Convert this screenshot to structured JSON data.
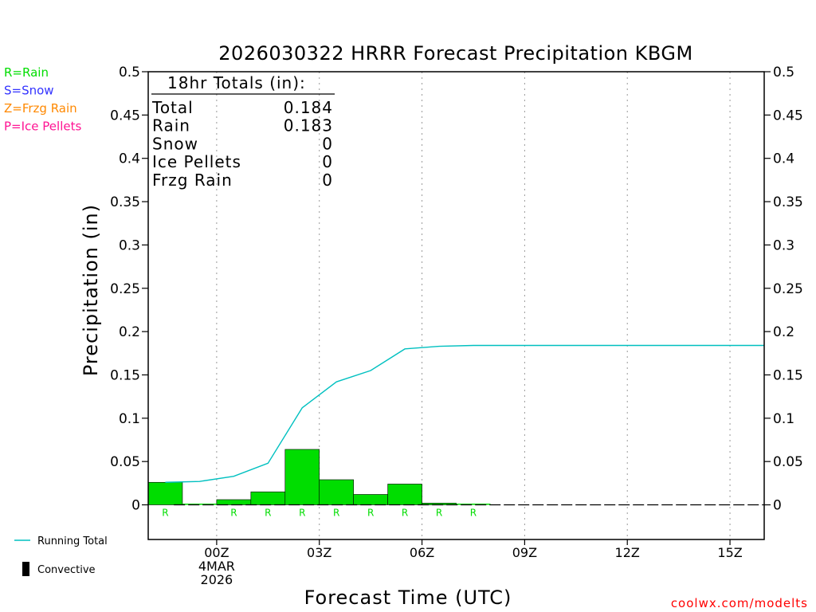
{
  "chart_data": {
    "type": "bar",
    "title": "2026030322 HRRR Forecast Precipitation KBGM",
    "xlabel": "Forecast Time (UTC)",
    "ylabel": "Precipitation (in)",
    "ylim": [
      -0.04,
      0.5
    ],
    "yticks": [
      "0",
      "0.05",
      "0.1",
      "0.15",
      "0.2",
      "0.25",
      "0.3",
      "0.35",
      "0.4",
      "0.45",
      "0.5"
    ],
    "xlim_hours": [
      -2,
      16
    ],
    "x_ticks": [
      {
        "hour": 0,
        "lines": [
          "00Z",
          "4MAR",
          "2026"
        ]
      },
      {
        "hour": 3,
        "lines": [
          "03Z"
        ]
      },
      {
        "hour": 6,
        "lines": [
          "06Z"
        ]
      },
      {
        "hour": 9,
        "lines": [
          "09Z"
        ]
      },
      {
        "hour": 12,
        "lines": [
          "12Z"
        ]
      },
      {
        "hour": 15,
        "lines": [
          "15Z"
        ]
      }
    ],
    "hourly": {
      "hours": [
        -1,
        0,
        1,
        2,
        3,
        4,
        5,
        6,
        7,
        8,
        9,
        10,
        11,
        12,
        13,
        14,
        15
      ],
      "values": [
        0.026,
        0.001,
        0.006,
        0.015,
        0.064,
        0.029,
        0.012,
        0.024,
        0.002,
        0.0005,
        0,
        0,
        0,
        0,
        0,
        0,
        0
      ],
      "ptype": [
        "R",
        "",
        "R",
        "R",
        "R",
        "R",
        "R",
        "R",
        "R",
        "R",
        "",
        "",
        "",
        "",
        "",
        "",
        ""
      ]
    },
    "running_total": {
      "name": "Running Total",
      "hours": [
        -1,
        0,
        1,
        2,
        3,
        4,
        5,
        6,
        7,
        8,
        9,
        10,
        11,
        12,
        13,
        14,
        15,
        16
      ],
      "values": [
        0.026,
        0.027,
        0.033,
        0.048,
        0.112,
        0.142,
        0.155,
        0.18,
        0.183,
        0.184,
        0.184,
        0.184,
        0.184,
        0.184,
        0.184,
        0.184,
        0.184,
        0.184
      ]
    },
    "totals_box": {
      "header": "18hr Totals (in):",
      "rows": [
        {
          "label": "Total",
          "value": "0.184"
        },
        {
          "label": "Rain",
          "value": "0.183"
        },
        {
          "label": "Snow",
          "value": "0"
        },
        {
          "label": "Ice Pellets",
          "value": "0"
        },
        {
          "label": "Frzg Rain",
          "value": "0"
        }
      ]
    },
    "ptype_legend": [
      {
        "label": "R=Rain",
        "color": "#00dd00"
      },
      {
        "label": "S=Snow",
        "color": "#3333ff"
      },
      {
        "label": "Z=Frzg Rain",
        "color": "#ff8800"
      },
      {
        "label": "P=Ice Pellets",
        "color": "#ff1493"
      }
    ],
    "series_legend": [
      {
        "label": "Running Total",
        "kind": "line",
        "color": "#00c0c0"
      },
      {
        "label": "Convective",
        "kind": "bar",
        "color": "#000000"
      }
    ],
    "colors": {
      "rain_bar": "#00dd00",
      "running_total": "#00c0c0",
      "grid": "#999999",
      "credit": "#ff0000"
    },
    "credit": "coolwx.com/modelts"
  }
}
